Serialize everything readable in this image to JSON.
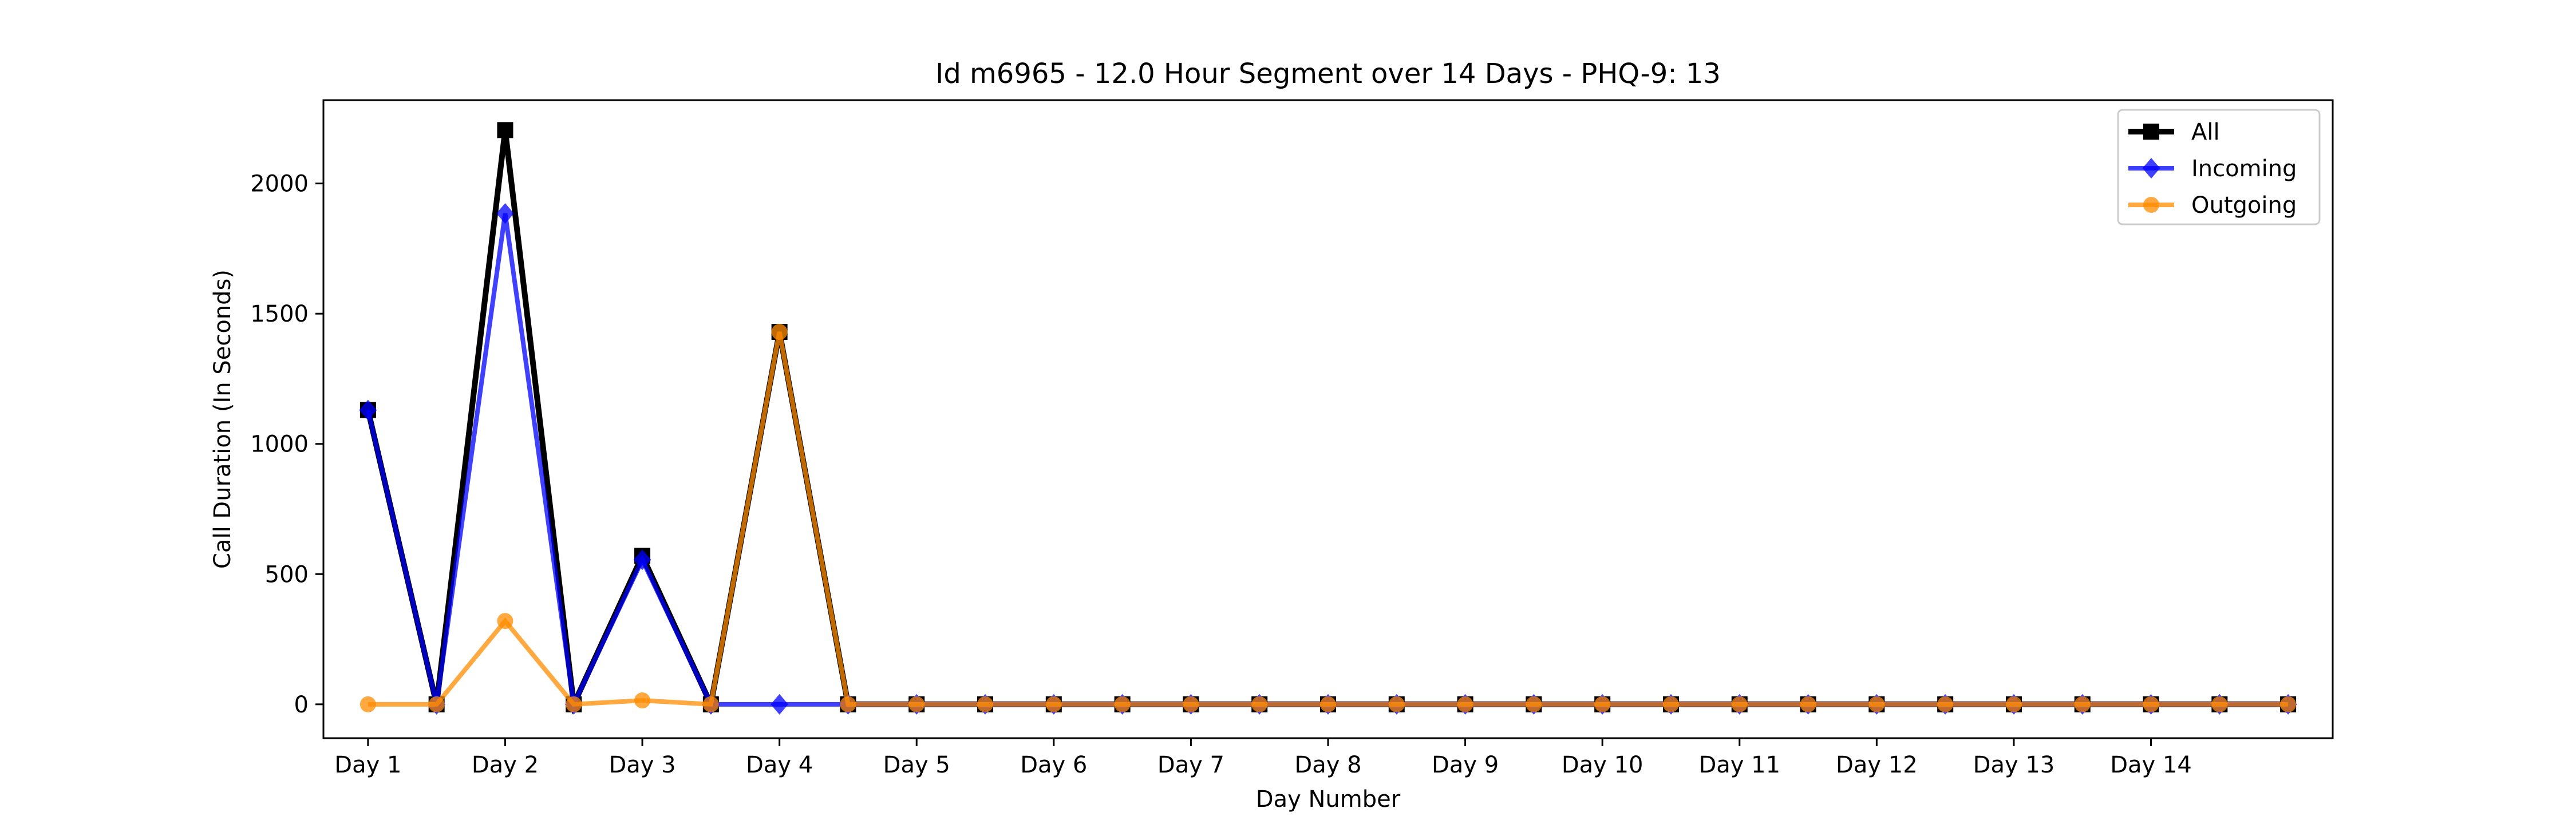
{
  "chart_data": {
    "type": "line",
    "title": "Id m6965 - 12.0 Hour Segment over 14 Days - PHQ-9: 13",
    "xlabel": "Day Number",
    "ylabel": "Call Duration (In Seconds)",
    "ylim": [
      -130,
      2320
    ],
    "xlim": [
      -0.65,
      28.65
    ],
    "yticks": [
      0,
      500,
      1000,
      1500,
      2000
    ],
    "x": [
      0,
      1,
      2,
      3,
      4,
      5,
      6,
      7,
      8,
      9,
      10,
      11,
      12,
      13,
      14,
      15,
      16,
      17,
      18,
      19,
      20,
      21,
      22,
      23,
      24,
      25,
      26,
      27,
      28
    ],
    "x_tick_positions": [
      0,
      2,
      4,
      6,
      8,
      10,
      12,
      14,
      16,
      18,
      20,
      22,
      24,
      26
    ],
    "x_tick_labels": [
      "Day 1",
      "Day 2",
      "Day 3",
      "Day 4",
      "Day 5",
      "Day 6",
      "Day 7",
      "Day 8",
      "Day 9",
      "Day 10",
      "Day 11",
      "Day 12",
      "Day 13",
      "Day 14"
    ],
    "legend_position": "top-right",
    "grid": false,
    "series": [
      {
        "name": "All",
        "color": "#000000",
        "marker": "square",
        "alpha": 1.0,
        "line_width": 5,
        "values": [
          1130,
          0,
          2205,
          0,
          570,
          0,
          1430,
          0,
          0,
          0,
          0,
          0,
          0,
          0,
          0,
          0,
          0,
          0,
          0,
          0,
          0,
          0,
          0,
          0,
          0,
          0,
          0,
          0,
          0
        ]
      },
      {
        "name": "Incoming",
        "color": "#0000ff",
        "marker": "diamond",
        "alpha": 0.75,
        "line_width": 4,
        "values": [
          1130,
          0,
          1885,
          0,
          555,
          0,
          0,
          0,
          0,
          0,
          0,
          0,
          0,
          0,
          0,
          0,
          0,
          0,
          0,
          0,
          0,
          0,
          0,
          0,
          0,
          0,
          0,
          0,
          0
        ]
      },
      {
        "name": "Outgoing",
        "color": "#ff8c00",
        "marker": "circle",
        "alpha": 0.75,
        "line_width": 4,
        "values": [
          0,
          0,
          320,
          0,
          15,
          0,
          1430,
          0,
          0,
          0,
          0,
          0,
          0,
          0,
          0,
          0,
          0,
          0,
          0,
          0,
          0,
          0,
          0,
          0,
          0,
          0,
          0,
          0,
          0
        ]
      }
    ]
  }
}
